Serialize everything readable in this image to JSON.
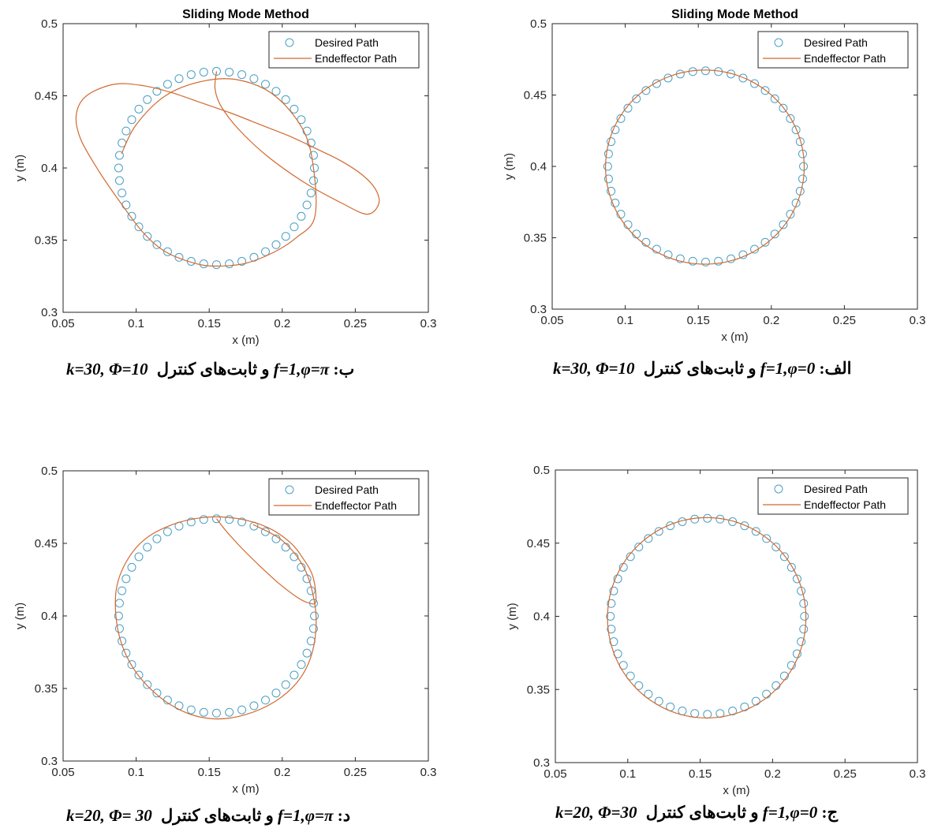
{
  "chart_data": [
    {
      "type": "scatter",
      "panel": "tl",
      "title": "Sliding Mode Method",
      "xlabel": "x (m)",
      "ylabel": "y (m)",
      "xlim": [
        0.05,
        0.3
      ],
      "ylim": [
        0.3,
        0.5
      ],
      "xticks": [
        "0.05",
        "0.1",
        "0.15",
        "0.2",
        "0.25",
        "0.3"
      ],
      "yticks": [
        "0.3",
        "0.35",
        "0.4",
        "0.45",
        "0.5"
      ],
      "legend_position": "top-right",
      "legend": [
        "Desired Path",
        "Endeffector Path"
      ],
      "series": [
        {
          "name": "Desired Path",
          "kind": "circle",
          "center": [
            0.155,
            0.4
          ],
          "radius": 0.067,
          "points": 48
        },
        {
          "name": "Endeffector Path",
          "x": [
            0.155,
            0.154,
            0.158,
            0.17,
            0.19,
            0.215,
            0.24,
            0.258,
            0.266,
            0.264,
            0.255,
            0.24,
            0.222,
            0.205,
            0.185,
            0.165,
            0.145,
            0.125,
            0.105,
            0.085,
            0.066,
            0.059,
            0.062,
            0.075,
            0.09,
            0.105,
            0.12,
            0.14,
            0.155,
            0.175,
            0.195,
            0.21,
            0.222,
            0.222,
            0.215,
            0.195,
            0.17,
            0.145,
            0.12,
            0.1,
            0.09
          ],
          "y": [
            0.467,
            0.455,
            0.443,
            0.427,
            0.408,
            0.39,
            0.376,
            0.368,
            0.375,
            0.385,
            0.395,
            0.405,
            0.414,
            0.422,
            0.43,
            0.438,
            0.445,
            0.452,
            0.457,
            0.458,
            0.45,
            0.437,
            0.42,
            0.397,
            0.375,
            0.355,
            0.342,
            0.334,
            0.332,
            0.334,
            0.342,
            0.352,
            0.365,
            0.395,
            0.425,
            0.45,
            0.461,
            0.46,
            0.45,
            0.43,
            0.41
          ]
        }
      ]
    },
    {
      "type": "scatter",
      "panel": "tr",
      "title": "Sliding Mode Method",
      "xlabel": "x (m)",
      "ylabel": "y (m)",
      "xlim": [
        0.05,
        0.3
      ],
      "ylim": [
        0.3,
        0.5
      ],
      "xticks": [
        "0.05",
        "0.1",
        "0.15",
        "0.2",
        "0.25",
        "0.3"
      ],
      "yticks": [
        "0.3",
        "0.35",
        "0.4",
        "0.45",
        "0.5"
      ],
      "legend_position": "top-right",
      "legend": [
        "Desired Path",
        "Endeffector Path"
      ],
      "series": [
        {
          "name": "Desired Path",
          "kind": "circle",
          "center": [
            0.155,
            0.4
          ],
          "radius": 0.067,
          "points": 48
        },
        {
          "name": "Endeffector Path",
          "kind": "circle",
          "center": [
            0.1545,
            0.3995
          ],
          "radius": 0.068
        }
      ]
    },
    {
      "type": "scatter",
      "panel": "bl",
      "title": "",
      "xlabel": "x (m)",
      "ylabel": "y (m)",
      "xlim": [
        0.05,
        0.3
      ],
      "ylim": [
        0.3,
        0.5
      ],
      "xticks": [
        "0.05",
        "0.1",
        "0.15",
        "0.2",
        "0.25",
        "0.3"
      ],
      "yticks": [
        "0.3",
        "0.35",
        "0.4",
        "0.45",
        "0.5"
      ],
      "legend_position": "top-right",
      "legend": [
        "Desired Path",
        "Endeffector Path"
      ],
      "series": [
        {
          "name": "Desired Path",
          "kind": "circle",
          "center": [
            0.155,
            0.4
          ],
          "radius": 0.067,
          "points": 48
        },
        {
          "name": "Endeffector Path",
          "x": [
            0.155,
            0.162,
            0.172,
            0.184,
            0.197,
            0.21,
            0.218,
            0.223,
            0.221,
            0.214,
            0.205,
            0.19,
            0.17,
            0.148,
            0.125,
            0.105,
            0.092,
            0.086,
            0.088,
            0.098,
            0.115,
            0.135,
            0.155,
            0.175,
            0.195,
            0.21,
            0.219,
            0.223,
            0.222,
            0.215,
            0.2,
            0.18
          ],
          "y": [
            0.467,
            0.458,
            0.447,
            0.435,
            0.423,
            0.413,
            0.409,
            0.41,
            0.427,
            0.44,
            0.451,
            0.461,
            0.467,
            0.468,
            0.463,
            0.452,
            0.435,
            0.415,
            0.388,
            0.364,
            0.345,
            0.333,
            0.329,
            0.332,
            0.341,
            0.354,
            0.37,
            0.39,
            0.41,
            0.433,
            0.452,
            0.463
          ]
        }
      ]
    },
    {
      "type": "scatter",
      "panel": "br",
      "title": "",
      "xlabel": "x (m)",
      "ylabel": "y (m)",
      "xlim": [
        0.05,
        0.3
      ],
      "ylim": [
        0.3,
        0.5
      ],
      "xticks": [
        "0.05",
        "0.1",
        "0.15",
        "0.2",
        "0.25",
        "0.3"
      ],
      "yticks": [
        "0.3",
        "0.35",
        "0.4",
        "0.45",
        "0.5"
      ],
      "legend_position": "top-right",
      "legend": [
        "Desired Path",
        "Endeffector Path"
      ],
      "series": [
        {
          "name": "Desired Path",
          "kind": "circle",
          "center": [
            0.155,
            0.4
          ],
          "radius": 0.067,
          "points": 48
        },
        {
          "name": "Endeffector Path",
          "kind": "circle",
          "center": [
            0.1545,
            0.399
          ],
          "radius": 0.0685
        }
      ]
    }
  ],
  "captions": {
    "tl": {
      "prefix": "ب: ",
      "formula": "f=1,φ=π",
      "middle": " و ثابت‌های کنترل ",
      "consts": "k=30, Φ=10"
    },
    "tr": {
      "prefix": "الف: ",
      "formula": "f=1,φ=0",
      "middle": " و ثابت‌های کنترل ",
      "consts": "k=30, Φ=10"
    },
    "bl": {
      "prefix": "د: ",
      "formula": "f=1,φ=π",
      "middle": " و ثابت‌های کنترل ",
      "consts": "k=20, Φ= 30"
    },
    "br": {
      "prefix": "ج: ",
      "formula": "f=1,φ=0",
      "middle": " و ثابت‌های کنترل ",
      "consts": "k=20, Φ=30"
    }
  },
  "colors": {
    "desired": "#4a9fc4",
    "endeffector": "#d2692f",
    "axis": "#262626",
    "grid_text": "#262626"
  }
}
